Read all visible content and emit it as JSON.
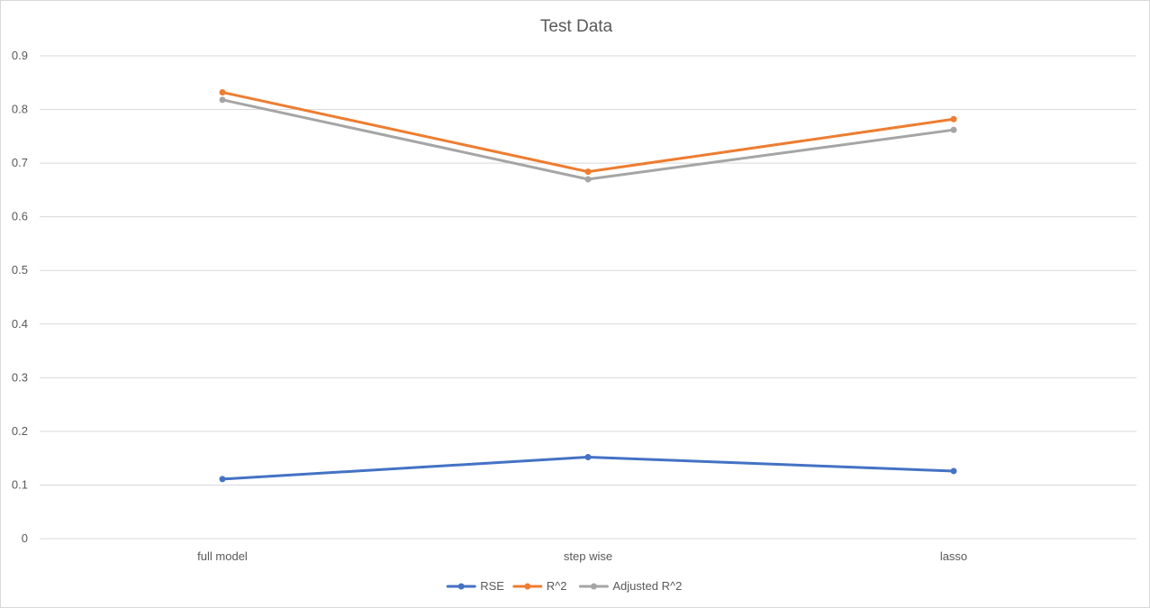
{
  "chart_data": {
    "type": "line",
    "title": "Test Data",
    "xlabel": "",
    "ylabel": "",
    "categories": [
      "full model",
      "step wise",
      "lasso"
    ],
    "ylim": [
      0,
      0.9
    ],
    "yticks": [
      "0",
      "0.1",
      "0.2",
      "0.3",
      "0.4",
      "0.5",
      "0.6",
      "0.7",
      "0.8",
      "0.9"
    ],
    "grid": true,
    "legend_position": "bottom",
    "series": [
      {
        "name": "RSE",
        "values": [
          0.111,
          0.152,
          0.126
        ],
        "color": "#4472C4"
      },
      {
        "name": "R^2",
        "values": [
          0.832,
          0.684,
          0.782
        ],
        "color": "#ED7D31"
      },
      {
        "name": "Adjusted R^2",
        "values": [
          0.818,
          0.67,
          0.762
        ],
        "color": "#A5A5A5"
      }
    ]
  }
}
